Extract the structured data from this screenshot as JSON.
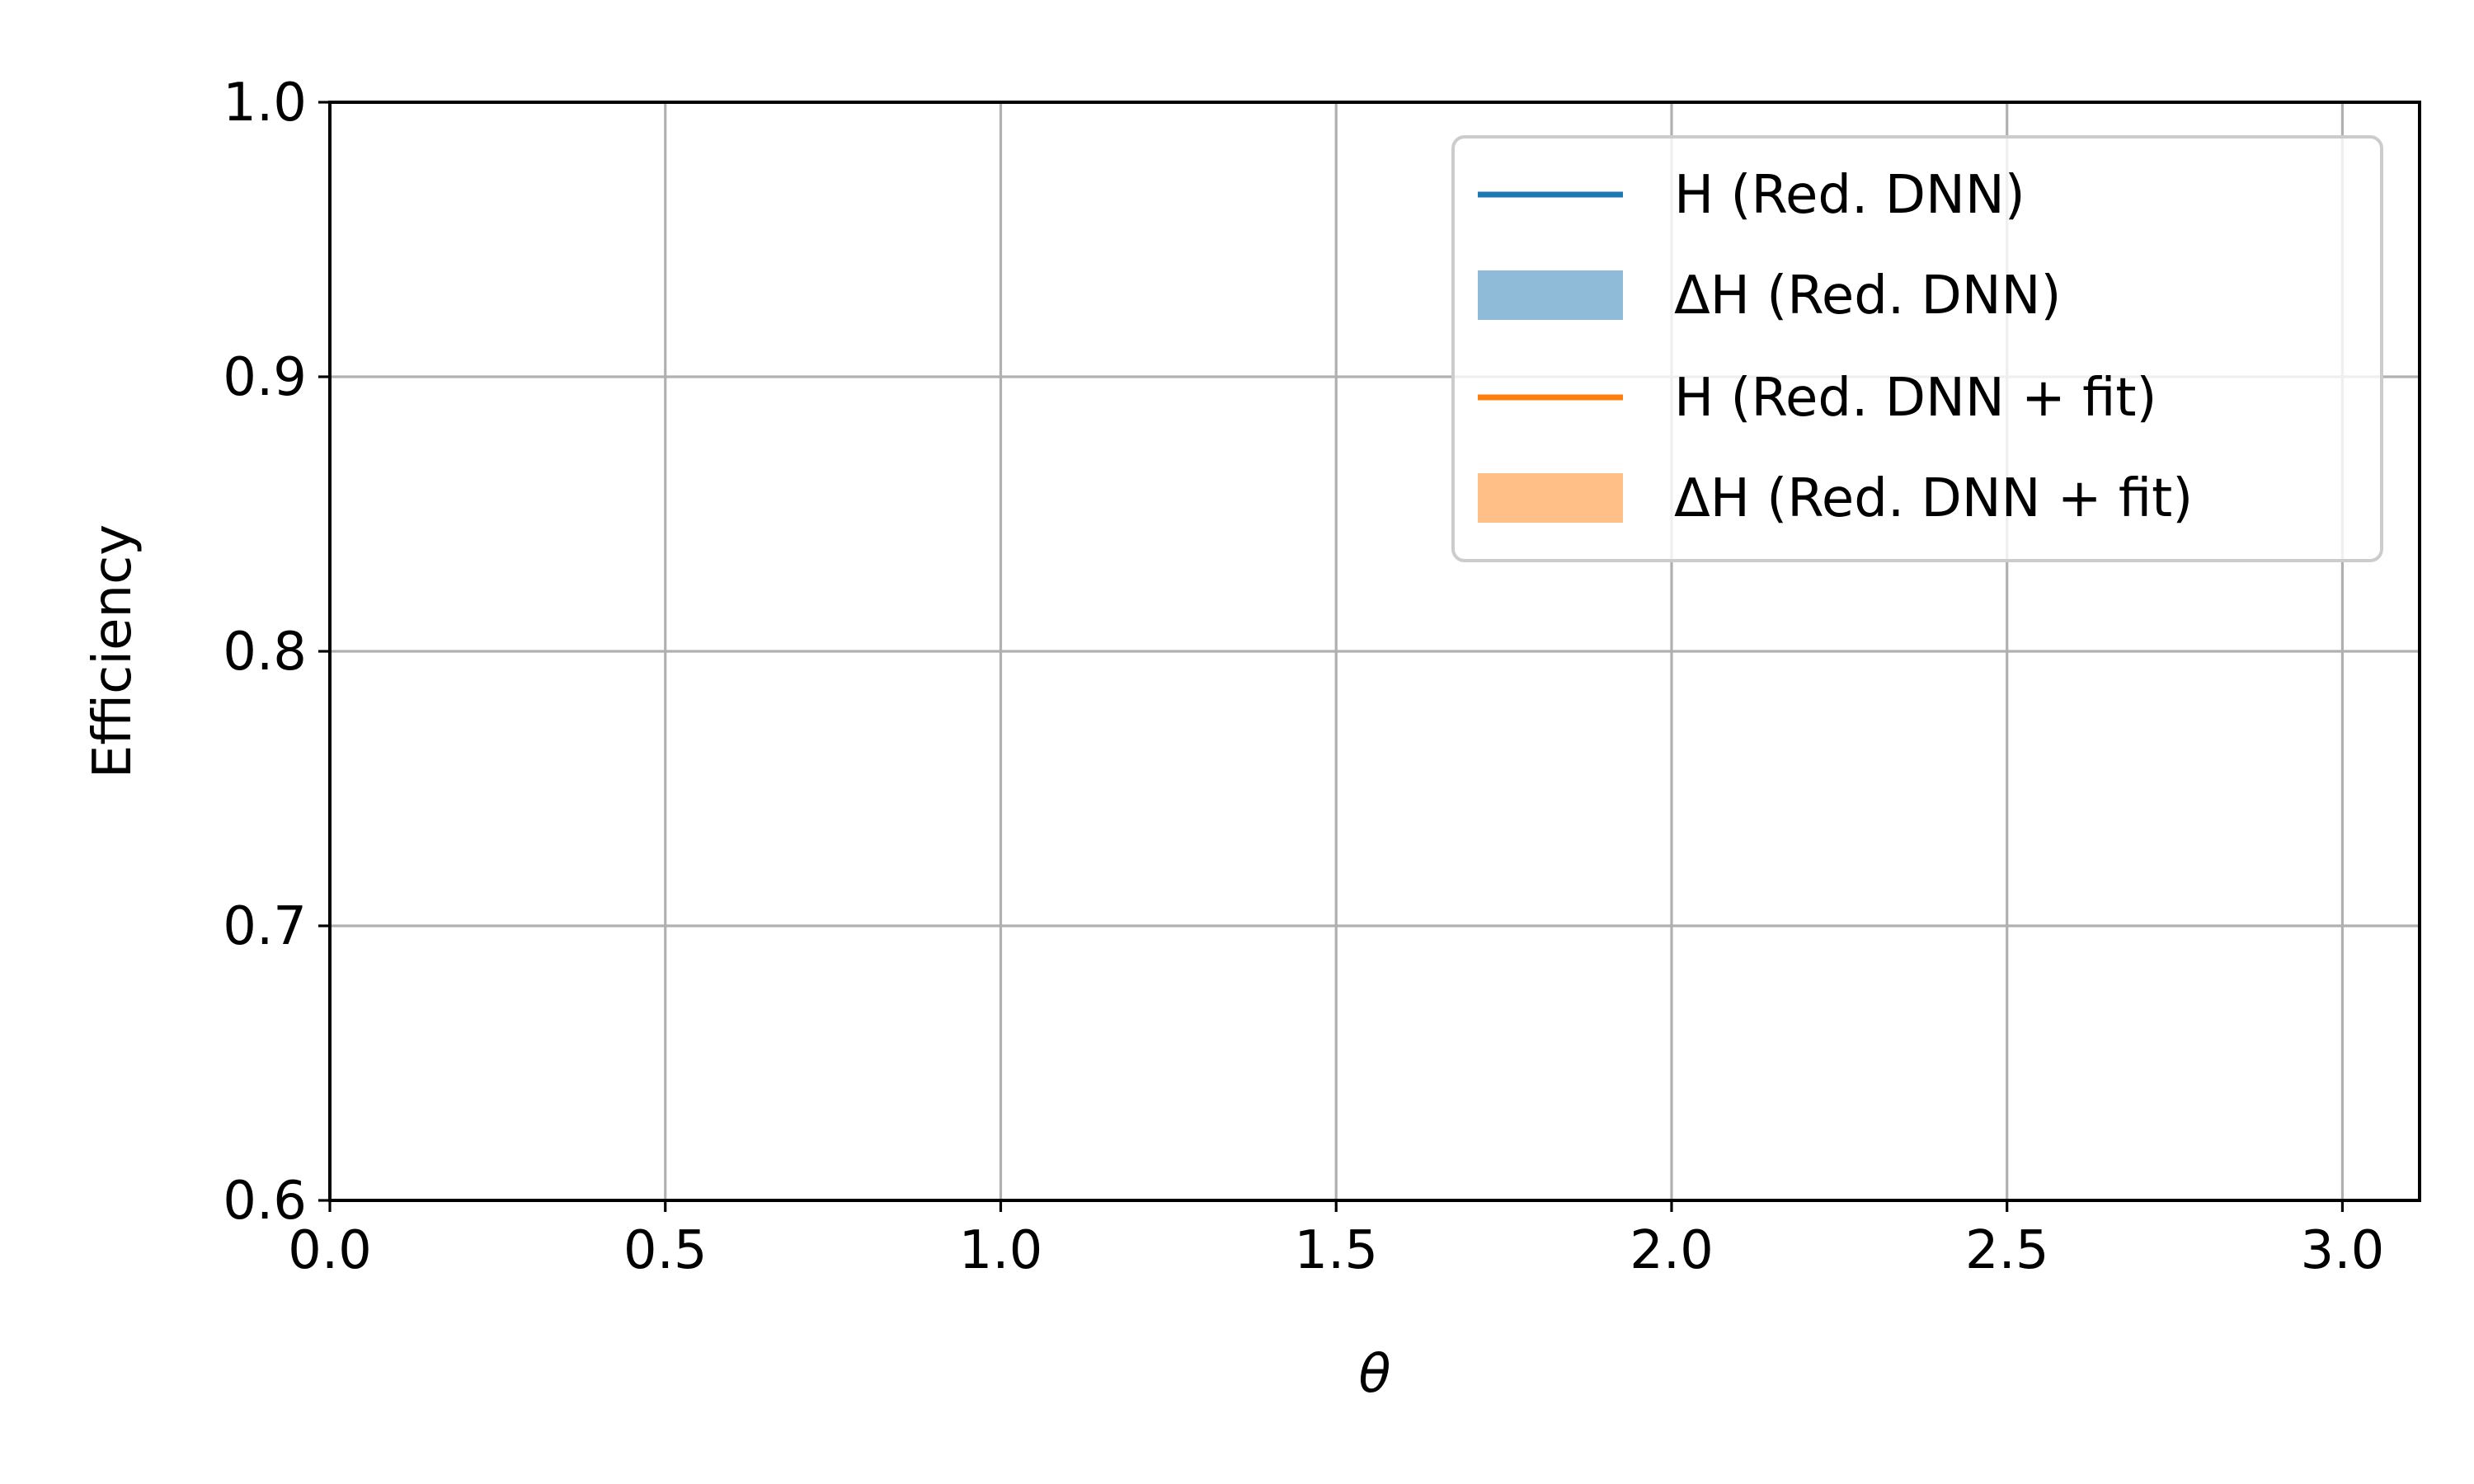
{
  "chart_data": {
    "type": "line",
    "title": "",
    "xlabel": "θ",
    "ylabel": "Efficiency",
    "xlim": [
      0.0,
      3.115
    ],
    "ylim": [
      0.6,
      1.0
    ],
    "xticks": [
      0.0,
      0.5,
      1.0,
      1.5,
      2.0,
      2.5,
      3.0
    ],
    "xtick_labels": [
      "0.0",
      "0.5",
      "1.0",
      "1.5",
      "2.0",
      "2.5",
      "3.0"
    ],
    "yticks": [
      0.6,
      0.7,
      0.8,
      0.9,
      1.0
    ],
    "ytick_labels": [
      "0.6",
      "0.7",
      "0.8",
      "0.9",
      "1.0"
    ],
    "grid": true,
    "legend_position": "top-right",
    "series": [
      {
        "name": "H (Red. DNN)",
        "kind": "line",
        "color": "#1f77b4",
        "x": [],
        "y": []
      },
      {
        "name": "ΔH (Red. DNN)",
        "kind": "band",
        "color": "#8fbbd9",
        "x": [],
        "y_low": [],
        "y_high": []
      },
      {
        "name": "H (Red. DNN + fit)",
        "kind": "line",
        "color": "#ff7f0e",
        "x": [],
        "y": []
      },
      {
        "name": "ΔH (Red. DNN + fit)",
        "kind": "band",
        "color": "#ffbf86",
        "x": [],
        "y_low": [],
        "y_high": []
      }
    ]
  }
}
